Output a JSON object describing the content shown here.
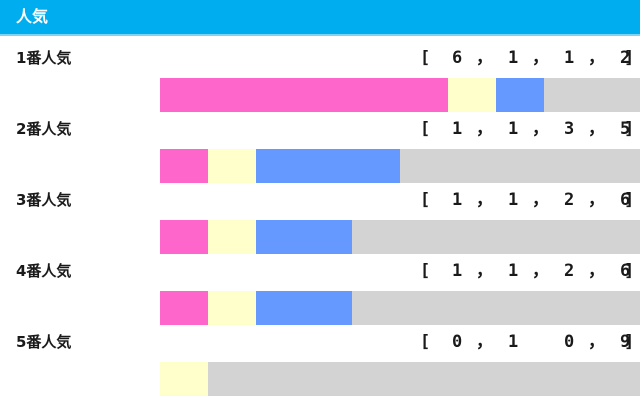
{
  "header": {
    "title": "人気"
  },
  "colors": {
    "header_bg": "#00aeef",
    "first": "#ff66cc",
    "second": "#ffffcc",
    "third": "#6699ff",
    "other": "#d3d3d3"
  },
  "chart_data": {
    "type": "bar",
    "stacked": true,
    "orientation": "horizontal",
    "title": "人気",
    "categories": [
      "1番人気",
      "2番人気",
      "3番人気",
      "4番人気",
      "5番人気"
    ],
    "series": [
      {
        "values": [
          6,
          1,
          1,
          1,
          0
        ]
      },
      {
        "values": [
          1,
          1,
          1,
          1,
          1
        ]
      },
      {
        "values": [
          1,
          3,
          2,
          2,
          0
        ]
      },
      {
        "values": [
          2,
          5,
          6,
          6,
          9
        ]
      }
    ],
    "records": [
      {
        "open": "[",
        "v1": "6",
        "s1": "，",
        "v2": "1",
        "s2": "，",
        "v3": "1",
        "s3": "，",
        "v4": "2",
        "close": "]"
      },
      {
        "open": "[",
        "v1": "1",
        "s1": "，",
        "v2": "1",
        "s2": "，",
        "v3": "3",
        "s3": "，",
        "v4": "5",
        "close": "]"
      },
      {
        "open": "[",
        "v1": "1",
        "s1": "，",
        "v2": "1",
        "s2": "，",
        "v3": "2",
        "s3": "，",
        "v4": "6",
        "close": "]"
      },
      {
        "open": "[",
        "v1": "1",
        "s1": "，",
        "v2": "1",
        "s2": "，",
        "v3": "2",
        "s3": "，",
        "v4": "6",
        "close": "]"
      },
      {
        "open": "[",
        "v1": "0",
        "s1": "，",
        "v2": "1",
        "s2": "",
        "v3": "0",
        "s3": "，",
        "v4": "9",
        "close": "]"
      }
    ]
  }
}
